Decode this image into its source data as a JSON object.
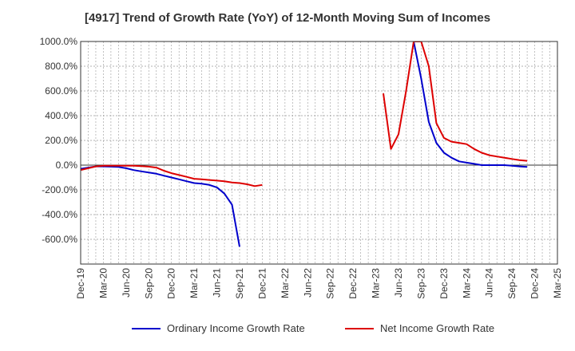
{
  "colors": {
    "ordinary": "#0000cc",
    "net": "#dd0000",
    "grid": "#999999",
    "axis": "#333333"
  },
  "chart_data": {
    "type": "line",
    "title": "[4917]  Trend of Growth Rate (YoY) of 12-Month Moving Sum of Incomes",
    "xlabel": "",
    "ylabel": "",
    "ylim": [
      -800,
      1000
    ],
    "yticks": [
      1000,
      800,
      600,
      400,
      200,
      0,
      -200,
      -400,
      -600
    ],
    "ytick_labels": [
      "1000.0%",
      "800.0%",
      "600.0%",
      "400.0%",
      "200.0%",
      "0.0%",
      "-200.0%",
      "-400.0%",
      "-600.0%"
    ],
    "xticks": [
      "Dec-19",
      "Mar-20",
      "Jun-20",
      "Sep-20",
      "Dec-20",
      "Mar-21",
      "Jun-21",
      "Sep-21",
      "Dec-21",
      "Mar-22",
      "Jun-22",
      "Sep-22",
      "Dec-22",
      "Mar-23",
      "Jun-23",
      "Sep-23",
      "Dec-23",
      "Mar-24",
      "Jun-24",
      "Sep-24",
      "Dec-24",
      "Mar-25"
    ],
    "grid": true,
    "legend_position": "bottom",
    "series": [
      {
        "name": "Ordinary Income Growth Rate",
        "color": "#0000cc",
        "values": [
          -30,
          -20,
          -10,
          -10,
          -12,
          -15,
          -25,
          -40,
          -50,
          -60,
          -70,
          -85,
          -100,
          -115,
          -130,
          -145,
          -150,
          -160,
          -180,
          -230,
          -320,
          -660,
          null,
          null,
          null,
          null,
          null,
          null,
          null,
          null,
          null,
          null,
          null,
          null,
          null,
          null,
          null,
          null,
          null,
          null,
          null,
          null,
          null,
          null,
          1000,
          700,
          350,
          180,
          100,
          60,
          30,
          20,
          10,
          0,
          0,
          0,
          0,
          -5,
          -10,
          -15
        ]
      },
      {
        "name": "Net Income Growth Rate",
        "color": "#dd0000",
        "values": [
          -40,
          -25,
          -10,
          -5,
          -5,
          -5,
          -5,
          -5,
          -8,
          -12,
          -20,
          -45,
          -65,
          -80,
          -95,
          -110,
          -115,
          -120,
          -125,
          -130,
          -140,
          -145,
          -155,
          -170,
          -160,
          null,
          null,
          null,
          null,
          null,
          null,
          null,
          null,
          null,
          null,
          null,
          null,
          null,
          null,
          null,
          580,
          130,
          250,
          600,
          1000,
          1000,
          800,
          340,
          220,
          190,
          180,
          170,
          130,
          100,
          80,
          70,
          60,
          50,
          40,
          35
        ]
      }
    ]
  }
}
